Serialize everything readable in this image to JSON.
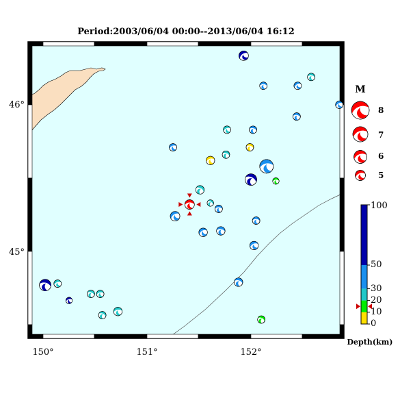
{
  "title": "Period:2003/06/04 00:00--2013/06/04 16:12",
  "axes": {
    "lon_labels": [
      "150°",
      "151°",
      "152°"
    ],
    "lat_labels": [
      "46°",
      "45°"
    ]
  },
  "magnitude_legend": {
    "header": "M",
    "labels": [
      "8",
      "7",
      "6",
      "5"
    ]
  },
  "depth_scale": {
    "title": "Depth(km)",
    "tick_labels": [
      "100",
      "50",
      "30",
      "20",
      "10",
      "0"
    ],
    "bands": [
      {
        "from": 0,
        "to": 10,
        "color": "#ffe000"
      },
      {
        "from": 10,
        "to": 20,
        "color": "#00ee00"
      },
      {
        "from": 20,
        "to": 30,
        "color": "#20c8c8"
      },
      {
        "from": 30,
        "to": 50,
        "color": "#1a90ef"
      },
      {
        "from": 50,
        "to": 100,
        "color": "#0000aa"
      }
    ]
  },
  "colors": {
    "sea": "#e0ffff",
    "land": "#fadfc0",
    "latest_event": "#ff0000"
  },
  "events": [
    {
      "lon": 151.93,
      "lat": 46.335,
      "mag": 5.4,
      "color": "#0000aa"
    },
    {
      "lon": 152.12,
      "lat": 46.13,
      "mag": 5.2,
      "color": "#1a90ef"
    },
    {
      "lon": 152.45,
      "lat": 46.13,
      "mag": 5.2,
      "color": "#1a90ef"
    },
    {
      "lon": 152.58,
      "lat": 46.19,
      "mag": 5.2,
      "color": "#20c8c8"
    },
    {
      "lon": 152.85,
      "lat": 46.0,
      "mag": 5.2,
      "color": "#1a90ef"
    },
    {
      "lon": 152.44,
      "lat": 45.92,
      "mag": 5.2,
      "color": "#1a90ef"
    },
    {
      "lon": 151.77,
      "lat": 45.83,
      "mag": 5.2,
      "color": "#20c8c8"
    },
    {
      "lon": 152.02,
      "lat": 45.83,
      "mag": 5.2,
      "color": "#1a90ef"
    },
    {
      "lon": 151.25,
      "lat": 45.71,
      "mag": 5.2,
      "color": "#1a90ef"
    },
    {
      "lon": 151.99,
      "lat": 45.71,
      "mag": 5.2,
      "color": "#ffe000"
    },
    {
      "lon": 151.61,
      "lat": 45.62,
      "mag": 5.3,
      "color": "#ffe000"
    },
    {
      "lon": 151.76,
      "lat": 45.66,
      "mag": 5.2,
      "color": "#20c8c8"
    },
    {
      "lon": 152.15,
      "lat": 45.58,
      "mag": 5.8,
      "color": "#1a90ef"
    },
    {
      "lon": 152.0,
      "lat": 45.49,
      "mag": 5.6,
      "color": "#0000aa"
    },
    {
      "lon": 152.24,
      "lat": 45.48,
      "mag": 5.1,
      "color": "#00ee00"
    },
    {
      "lon": 151.51,
      "lat": 45.42,
      "mag": 5.3,
      "color": "#20c8c8"
    },
    {
      "lon": 151.41,
      "lat": 45.32,
      "mag": 5.4,
      "color": "#ff0000",
      "latest": true
    },
    {
      "lon": 151.61,
      "lat": 45.33,
      "mag": 5.1,
      "color": "#20c8c8"
    },
    {
      "lon": 151.69,
      "lat": 45.29,
      "mag": 5.2,
      "color": "#1a90ef"
    },
    {
      "lon": 151.27,
      "lat": 45.24,
      "mag": 5.4,
      "color": "#1a90ef"
    },
    {
      "lon": 152.05,
      "lat": 45.21,
      "mag": 5.2,
      "color": "#1a90ef"
    },
    {
      "lon": 151.54,
      "lat": 45.13,
      "mag": 5.3,
      "color": "#1a90ef"
    },
    {
      "lon": 151.71,
      "lat": 45.14,
      "mag": 5.3,
      "color": "#1a90ef"
    },
    {
      "lon": 152.03,
      "lat": 45.04,
      "mag": 5.3,
      "color": "#1a90ef"
    },
    {
      "lon": 150.02,
      "lat": 44.77,
      "mag": 5.6,
      "color": "#0000aa"
    },
    {
      "lon": 150.14,
      "lat": 44.78,
      "mag": 5.2,
      "color": "#20c8c8"
    },
    {
      "lon": 151.88,
      "lat": 44.79,
      "mag": 5.3,
      "color": "#1a90ef"
    },
    {
      "lon": 150.25,
      "lat": 44.665,
      "mag": 5.1,
      "color": "#0000aa"
    },
    {
      "lon": 150.46,
      "lat": 44.71,
      "mag": 5.2,
      "color": "#20c8c8"
    },
    {
      "lon": 150.55,
      "lat": 44.71,
      "mag": 5.2,
      "color": "#20c8c8"
    },
    {
      "lon": 150.57,
      "lat": 44.565,
      "mag": 5.2,
      "color": "#20c8c8"
    },
    {
      "lon": 150.72,
      "lat": 44.59,
      "mag": 5.3,
      "color": "#20c8c8"
    },
    {
      "lon": 152.1,
      "lat": 44.535,
      "mag": 5.2,
      "color": "#00ee00"
    }
  ]
}
